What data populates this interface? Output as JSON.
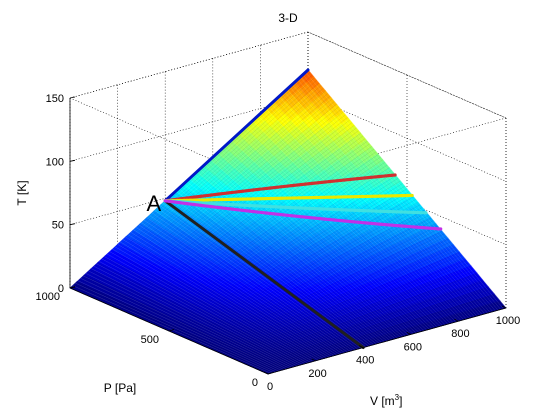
{
  "figure": {
    "title": "3-D"
  },
  "chart_data": {
    "type": "surface",
    "title": "3-D",
    "xlabel": "V [m",
    "xlabel_superscript": "3",
    "xlabel_suffix": "]",
    "ylabel": "P [Pa]",
    "zlabel": "T [K]",
    "xlim": [
      0,
      1000
    ],
    "ylim": [
      0,
      1000
    ],
    "zlim": [
      0,
      150
    ],
    "x_ticks": [
      "0",
      "200",
      "400",
      "600",
      "800",
      "1000"
    ],
    "y_ticks": [
      "0",
      "500",
      "1000"
    ],
    "z_ticks": [
      "0",
      "50",
      "100",
      "150"
    ],
    "grid": true,
    "colormap": "jet",
    "surface": "T = P·V / 8314 (ideal gas, 1 kmol)",
    "point_label": "A",
    "point_A": {
      "V": 400,
      "P": 1000,
      "T": 48
    },
    "series": [
      {
        "color": "#0018c8",
        "points": [
          {
            "V": 400,
            "P": 1000,
            "T": 48
          },
          {
            "V": 1000,
            "P": 1000,
            "T": 120
          }
        ]
      },
      {
        "color": "#202020",
        "points": [
          {
            "V": 400,
            "P": 1000,
            "T": 48
          },
          {
            "V": 400,
            "P": 0,
            "T": 0
          }
        ]
      },
      {
        "color": "#d03030",
        "points": [
          {
            "V": 400,
            "P": 1000,
            "T": 48
          },
          {
            "V": 1000,
            "P": 560,
            "T": 67
          }
        ]
      },
      {
        "color": "#e8e800",
        "points": [
          {
            "V": 400,
            "P": 1000,
            "T": 48
          },
          {
            "V": 1000,
            "P": 470,
            "T": 57
          }
        ]
      },
      {
        "color": "#40e0e0",
        "points": [
          {
            "V": 400,
            "P": 1000,
            "T": 48
          },
          {
            "V": 1000,
            "P": 400,
            "T": 48
          }
        ]
      },
      {
        "color": "#c030e8",
        "points": [
          {
            "V": 400,
            "P": 1000,
            "T": 48
          },
          {
            "V": 1000,
            "P": 330,
            "T": 40
          }
        ]
      }
    ]
  }
}
